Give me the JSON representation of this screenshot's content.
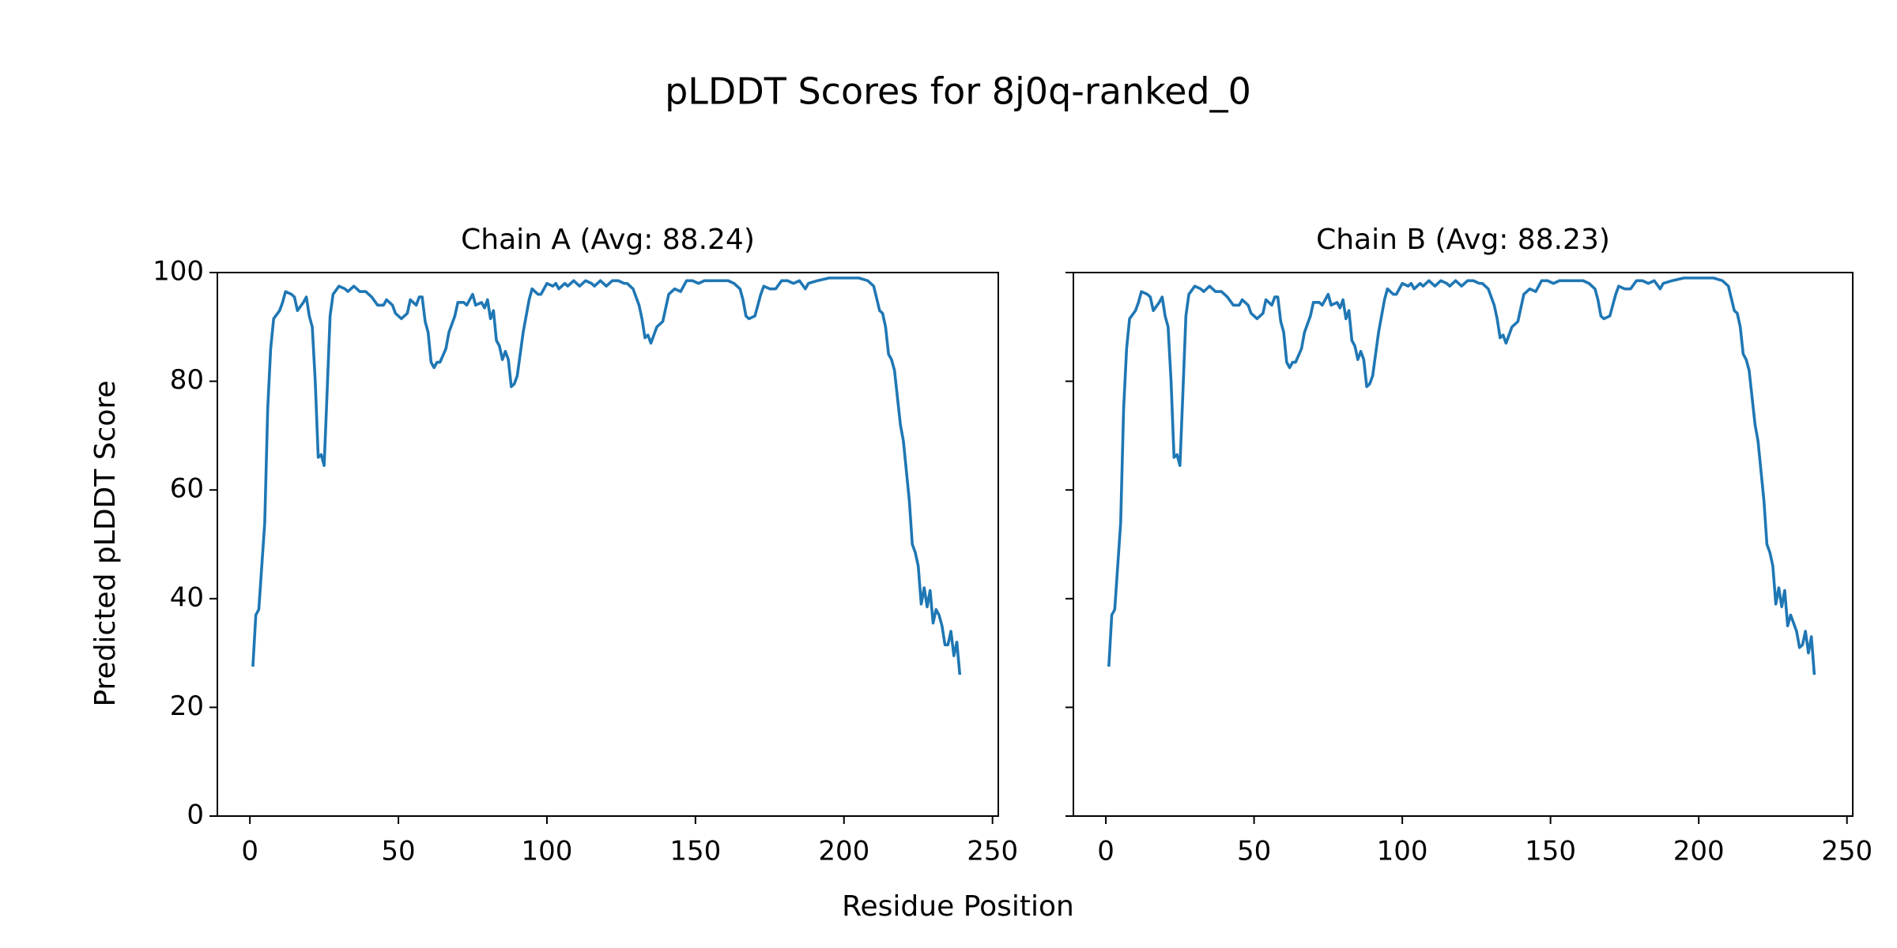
{
  "title": "pLDDT Scores for 8j0q-ranked_0",
  "xlabel": "Residue Position",
  "ylabel": "Predicted pLDDT Score",
  "chart_data": [
    {
      "type": "line",
      "title": "Chain A (Avg: 88.24)",
      "x": [
        1,
        2,
        3,
        5,
        6,
        7,
        8,
        10,
        11,
        12,
        14,
        15,
        16,
        18,
        19,
        20,
        21,
        22,
        23,
        24,
        25,
        26,
        27,
        28,
        30,
        32,
        33,
        35,
        37,
        39,
        41,
        43,
        45,
        46,
        48,
        49,
        51,
        53,
        54,
        56,
        57,
        58,
        59,
        60,
        61,
        62,
        63,
        64,
        66,
        67,
        69,
        70,
        72,
        73,
        75,
        76,
        78,
        79,
        80,
        81,
        82,
        83,
        84,
        85,
        86,
        87,
        88,
        89,
        90,
        92,
        94,
        95,
        97,
        98,
        100,
        102,
        103,
        104,
        106,
        107,
        109,
        111,
        113,
        115,
        116,
        118,
        120,
        122,
        124,
        126,
        127,
        129,
        131,
        132,
        133,
        134,
        135,
        137,
        139,
        141,
        143,
        145,
        147,
        149,
        151,
        153,
        155,
        157,
        159,
        161,
        163,
        165,
        166,
        167,
        168,
        170,
        172,
        173,
        175,
        177,
        179,
        181,
        183,
        185,
        187,
        188,
        191,
        195,
        200,
        205,
        208,
        210,
        212,
        213,
        214,
        215,
        216,
        217,
        219,
        220,
        222,
        223,
        224,
        225,
        226,
        227,
        228,
        229,
        230,
        231,
        232,
        233,
        234,
        235,
        236,
        237,
        238,
        239
      ],
      "series": [
        {
          "name": "Chain A",
          "color": "#1f77b4",
          "values": [
            27.5,
            37,
            38,
            54,
            75,
            86,
            91.5,
            93,
            94.5,
            96.5,
            96,
            95.5,
            93,
            94.5,
            95.5,
            92,
            90,
            80,
            66,
            66.5,
            64.5,
            78,
            92,
            96,
            97.5,
            97,
            96.5,
            97.5,
            96.5,
            96.5,
            95.5,
            94,
            94,
            95,
            94,
            92.5,
            91.5,
            92.5,
            95,
            94,
            95.5,
            95.5,
            91,
            89,
            83.5,
            82.5,
            83.5,
            83.5,
            86,
            89,
            92,
            94.5,
            94.5,
            94,
            96,
            94,
            94.5,
            93.5,
            95,
            91.5,
            93,
            87.5,
            86.5,
            84,
            85.5,
            84,
            79,
            79.5,
            81,
            89,
            95,
            97,
            96,
            96,
            98,
            97.5,
            98,
            97,
            98,
            97.5,
            98.5,
            97.5,
            98.5,
            98,
            97.5,
            98.5,
            97.5,
            98.5,
            98.5,
            98,
            98,
            97,
            94,
            91.5,
            88,
            88.5,
            87,
            90,
            91,
            96,
            97,
            96.5,
            98.5,
            98.5,
            98,
            98.5,
            98.5,
            98.5,
            98.5,
            98.5,
            98,
            97,
            95,
            92,
            91.5,
            92,
            96,
            97.5,
            97,
            97,
            98.5,
            98.5,
            98,
            98.5,
            97,
            98,
            98.5,
            99,
            99,
            99,
            98.5,
            97.5,
            93,
            92.5,
            90,
            85,
            84,
            82,
            72,
            69,
            58,
            50,
            48.5,
            46,
            39,
            42,
            38.5,
            41.5,
            35.5,
            38,
            37,
            35,
            31.5,
            31.5,
            34,
            29.5,
            32,
            26
          ]
        }
      ],
      "xlim": [
        -10.95,
        251.95
      ],
      "ylim": [
        0,
        100
      ],
      "xticks": [
        0,
        50,
        100,
        150,
        200,
        250
      ],
      "yticks": [
        0,
        20,
        40,
        60,
        80,
        100
      ],
      "ytick_labels_shown": true
    },
    {
      "type": "line",
      "title": "Chain B (Avg: 88.23)",
      "x": [
        1,
        2,
        3,
        5,
        6,
        7,
        8,
        10,
        11,
        12,
        14,
        15,
        16,
        18,
        19,
        20,
        21,
        22,
        23,
        24,
        25,
        26,
        27,
        28,
        30,
        32,
        33,
        35,
        37,
        39,
        41,
        43,
        45,
        46,
        48,
        49,
        51,
        53,
        54,
        56,
        57,
        58,
        59,
        60,
        61,
        62,
        63,
        64,
        66,
        67,
        69,
        70,
        72,
        73,
        75,
        76,
        78,
        79,
        80,
        81,
        82,
        83,
        84,
        85,
        86,
        87,
        88,
        89,
        90,
        92,
        94,
        95,
        97,
        98,
        100,
        102,
        103,
        104,
        106,
        107,
        109,
        111,
        113,
        115,
        116,
        118,
        120,
        122,
        124,
        126,
        127,
        129,
        131,
        132,
        133,
        134,
        135,
        137,
        139,
        141,
        143,
        145,
        147,
        149,
        151,
        153,
        155,
        157,
        159,
        161,
        163,
        165,
        166,
        167,
        168,
        170,
        172,
        173,
        175,
        177,
        179,
        181,
        183,
        185,
        187,
        188,
        191,
        195,
        200,
        205,
        208,
        210,
        212,
        213,
        214,
        215,
        216,
        217,
        219,
        220,
        222,
        223,
        224,
        225,
        226,
        227,
        228,
        229,
        230,
        231,
        232,
        233,
        234,
        235,
        236,
        237,
        238,
        239
      ],
      "series": [
        {
          "name": "Chain B",
          "color": "#1f77b4",
          "values": [
            27.5,
            37,
            38,
            54,
            75,
            86,
            91.5,
            93,
            94.5,
            96.5,
            96,
            95.5,
            93,
            94.5,
            95.5,
            92,
            90,
            80,
            66,
            66.5,
            64.5,
            78,
            92,
            96,
            97.5,
            97,
            96.5,
            97.5,
            96.5,
            96.5,
            95.5,
            94,
            94,
            95,
            94,
            92.5,
            91.5,
            92.5,
            95,
            94,
            95.5,
            95.5,
            91,
            89,
            83.5,
            82.5,
            83.5,
            83.5,
            86,
            89,
            92,
            94.5,
            94.5,
            94,
            96,
            94,
            94.5,
            93.5,
            95,
            91.5,
            93,
            87.5,
            86.5,
            84,
            85.5,
            84,
            79,
            79.5,
            81,
            89,
            95,
            97,
            96,
            96,
            98,
            97.5,
            98,
            97,
            98,
            97.5,
            98.5,
            97.5,
            98.5,
            98,
            97.5,
            98.5,
            97.5,
            98.5,
            98.5,
            98,
            98,
            97,
            94,
            91.5,
            88,
            88.5,
            87,
            90,
            91,
            96,
            97,
            96.5,
            98.5,
            98.5,
            98,
            98.5,
            98.5,
            98.5,
            98.5,
            98.5,
            98,
            97,
            95,
            92,
            91.5,
            92,
            96,
            97.5,
            97,
            97,
            98.5,
            98.5,
            98,
            98.5,
            97,
            98,
            98.5,
            99,
            99,
            99,
            98.5,
            97.5,
            93,
            92.5,
            90,
            85,
            84,
            82,
            72,
            69,
            58,
            50,
            48.5,
            46,
            39,
            42,
            38.5,
            41.5,
            35,
            37,
            35.5,
            34,
            31,
            31.5,
            34,
            30,
            33,
            26
          ]
        }
      ],
      "xlim": [
        -10.95,
        251.95
      ],
      "ylim": [
        0,
        100
      ],
      "xticks": [
        0,
        50,
        100,
        150,
        200,
        250
      ],
      "yticks": [
        0,
        20,
        40,
        60,
        80,
        100
      ],
      "ytick_labels_shown": false
    }
  ]
}
